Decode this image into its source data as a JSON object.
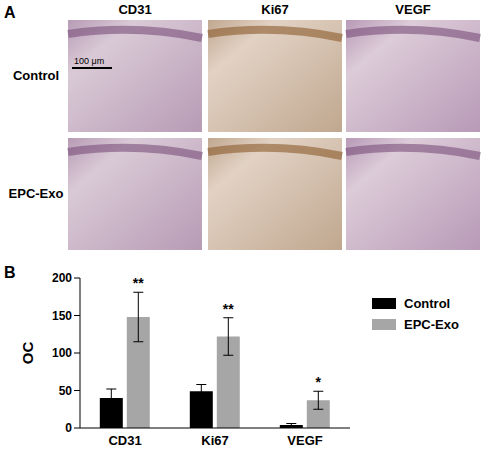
{
  "panel_a": {
    "label": "A",
    "columns": [
      "CD31",
      "Ki67",
      "VEGF"
    ],
    "rows": [
      "Control",
      "EPC-Exo"
    ],
    "scale_bar": "100 μm"
  },
  "panel_b": {
    "label": "B"
  },
  "chart_data": {
    "type": "bar",
    "ylabel": "OC",
    "categories": [
      "CD31",
      "Ki67",
      "VEGF"
    ],
    "series": [
      {
        "name": "Control",
        "color": "#000000",
        "values": [
          40,
          49,
          4
        ],
        "errors": [
          12,
          9,
          2
        ]
      },
      {
        "name": "EPC-Exo",
        "color": "#a6a6a6",
        "values": [
          148,
          122,
          37
        ],
        "errors": [
          33,
          25,
          12
        ],
        "annotations": [
          "**",
          "**",
          "*"
        ]
      }
    ],
    "ylim": [
      0,
      200
    ],
    "yticks": [
      0,
      50,
      100,
      150,
      200
    ],
    "grid": false,
    "legend": "upper right"
  }
}
